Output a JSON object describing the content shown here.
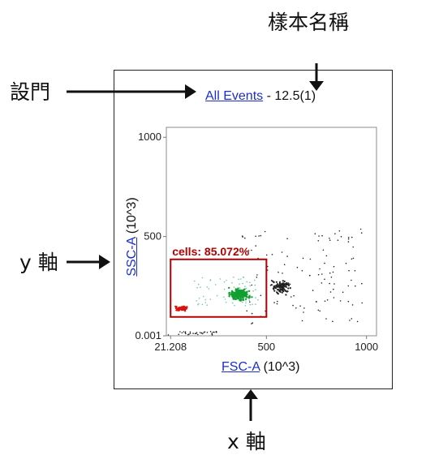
{
  "annotations": {
    "sample_name": "樣本名稱",
    "gate_label": "設門",
    "y_axis_label": "y 軸",
    "x_axis_label": "x 軸"
  },
  "plot_header": {
    "population_link": "All Events",
    "separator": " - ",
    "sample_id": "12.5(1)"
  },
  "axes": {
    "x": {
      "param_link": "FSC-A",
      "unit": " (10^3)",
      "ticks": [
        "21.208",
        "500",
        "1000"
      ],
      "tick_values": [
        21.208,
        500,
        1000
      ],
      "range": [
        0,
        1050
      ]
    },
    "y": {
      "param_link": "SSC-A",
      "unit": " (10^3)",
      "ticks": [
        "1000",
        "500",
        "0.001"
      ],
      "tick_values": [
        1000,
        500,
        0.001
      ],
      "range": [
        0,
        1050
      ]
    }
  },
  "gate": {
    "label": "cells: 85.072%",
    "x_range": [
      21.208,
      500
    ],
    "y_range": [
      95,
      385
    ]
  },
  "colors": {
    "gate": "#b40000",
    "link": "#1a2fcc",
    "red_cluster": "#e01010",
    "green_cluster": "#10a030",
    "black_events": "#222222"
  },
  "chart_data": {
    "type": "scatter",
    "xlabel": "FSC-A (10^3)",
    "ylabel": "SSC-A (10^3)",
    "xlim": [
      0,
      1050
    ],
    "ylim": [
      0,
      1050
    ],
    "clusters": [
      {
        "color": "red",
        "center": [
          75,
          138
        ]
      },
      {
        "color": "green",
        "center": [
          365,
          208
        ]
      },
      {
        "color": "black",
        "center": [
          575,
          245
        ]
      }
    ]
  }
}
